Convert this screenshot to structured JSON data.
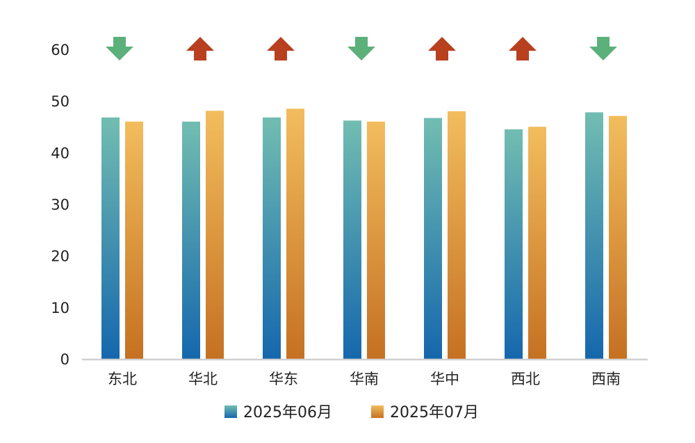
{
  "chart_data": {
    "type": "bar",
    "title": "",
    "xlabel": "",
    "ylabel": "",
    "ylim": [
      0,
      60
    ],
    "yticks": [
      0,
      10,
      20,
      30,
      40,
      50,
      60
    ],
    "grid": false,
    "legend_position": "bottom",
    "categories": [
      "东北",
      "华北",
      "华东",
      "华南",
      "华中",
      "西北",
      "西南"
    ],
    "series": [
      {
        "name": "2025年06月",
        "values": [
          46.8,
          46.0,
          46.8,
          46.2,
          46.7,
          44.5,
          47.8
        ],
        "color_top": "#72bdb1",
        "color_bottom": "#1567ad"
      },
      {
        "name": "2025年07月",
        "values": [
          46.0,
          48.1,
          48.5,
          46.0,
          48.0,
          45.0,
          47.1
        ],
        "color_top": "#f2bd5e",
        "color_bottom": "#c57122"
      }
    ],
    "trend_arrows": [
      "down",
      "up",
      "up",
      "down",
      "up",
      "up",
      "down"
    ],
    "arrow_colors": {
      "up": "#b8401f",
      "down": "#5cb07a"
    },
    "axis_color": "#d0d0d0"
  }
}
